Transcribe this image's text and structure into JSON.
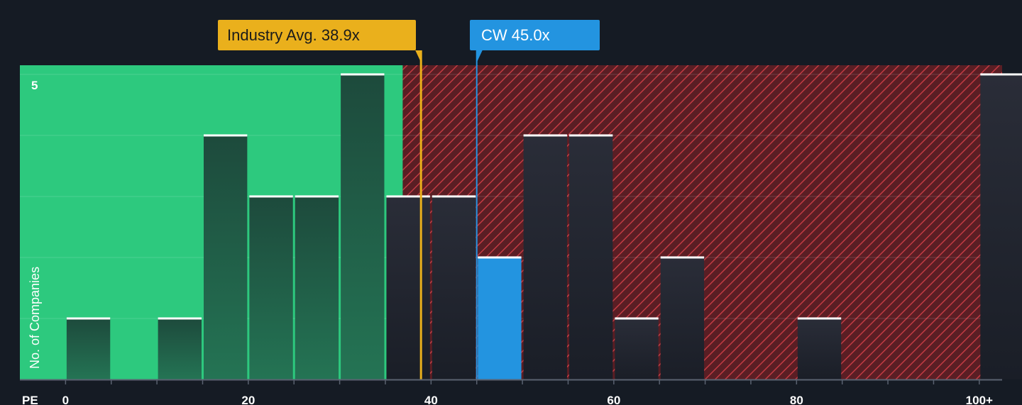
{
  "chart_data": {
    "type": "bar",
    "xlabel": "PE",
    "ylabel": "No. of Companies",
    "xlim": [
      -5,
      102.5
    ],
    "ylim": [
      0,
      5.15
    ],
    "x_ticks": [
      0,
      20,
      40,
      60,
      80,
      100
    ],
    "x_tick_labels": [
      "0",
      "20",
      "40",
      "60",
      "80",
      "100+"
    ],
    "y_ticks": [
      5
    ],
    "y_tick_labels": [
      "5"
    ],
    "bin_width": 5,
    "bins": [
      {
        "x0": 0,
        "count": 1
      },
      {
        "x0": 5,
        "count": 0
      },
      {
        "x0": 10,
        "count": 1
      },
      {
        "x0": 15,
        "count": 4
      },
      {
        "x0": 20,
        "count": 3
      },
      {
        "x0": 25,
        "count": 3
      },
      {
        "x0": 30,
        "count": 5
      },
      {
        "x0": 35,
        "count": 3
      },
      {
        "x0": 40,
        "count": 3
      },
      {
        "x0": 45,
        "count": 2,
        "highlight": true
      },
      {
        "x0": 50,
        "count": 4
      },
      {
        "x0": 55,
        "count": 4
      },
      {
        "x0": 60,
        "count": 1
      },
      {
        "x0": 65,
        "count": 2
      },
      {
        "x0": 70,
        "count": 0
      },
      {
        "x0": 75,
        "count": 0
      },
      {
        "x0": 80,
        "count": 1
      },
      {
        "x0": 85,
        "count": 0
      },
      {
        "x0": 90,
        "count": 0
      },
      {
        "x0": 95,
        "count": 0
      },
      {
        "x0": 100,
        "count": 5
      }
    ],
    "fair_zone_end": 36.9,
    "industry_avg": {
      "label": "Industry Avg. 38.9x",
      "value": 38.9
    },
    "company": {
      "label": "CW 45.0x",
      "value": 45.0
    },
    "grid": true,
    "colors": {
      "background": "#151b24",
      "fair_zone": "#2dc97e",
      "bar_in_fair": "#1e4a3a",
      "bar_out": "#262a34",
      "highlight_bar": "#2394e0",
      "hatch_bg": "#5a1e24",
      "hatch_line": "#c23b43",
      "industry": "#eab01c",
      "company": "#2394e0",
      "bar_cap": "#ffffff"
    }
  }
}
